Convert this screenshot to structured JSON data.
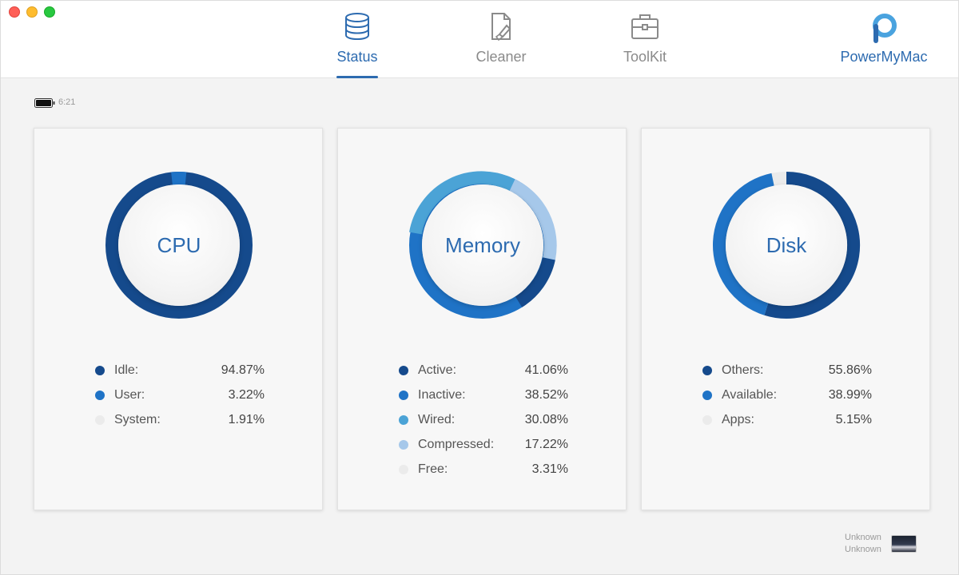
{
  "toolbar": {
    "tabs": [
      {
        "label": "Status",
        "active": true,
        "icon": "database-icon"
      },
      {
        "label": "Cleaner",
        "active": false,
        "icon": "cleaner-icon"
      },
      {
        "label": "ToolKit",
        "active": false,
        "icon": "toolkit-icon"
      }
    ],
    "brand": {
      "label": "PowerMyMac",
      "icon": "powermymac-logo-icon"
    }
  },
  "battery": {
    "time": "6:21",
    "icon": "battery-icon"
  },
  "colors": {
    "accent": "#2d6bb0",
    "dark_blue": "#154a8c",
    "mid_blue": "#1f73c6",
    "light_blue": "#4ba3d6",
    "pale_blue": "#a6c8ea",
    "empty": "#ebebeb"
  },
  "cards": {
    "cpu": {
      "title": "CPU",
      "items": [
        {
          "name": "Idle:",
          "value": "94.87%",
          "color": "#154a8c"
        },
        {
          "name": "User:",
          "value": "3.22%",
          "color": "#1f73c6"
        },
        {
          "name": "System:",
          "value": "1.91%",
          "color": "#ebebeb"
        }
      ]
    },
    "memory": {
      "title": "Memory",
      "items": [
        {
          "name": "Active:",
          "value": "41.06%",
          "color": "#154a8c"
        },
        {
          "name": "Inactive:",
          "value": "38.52%",
          "color": "#1f73c6"
        },
        {
          "name": "Wired:",
          "value": "30.08%",
          "color": "#4ba3d6"
        },
        {
          "name": "Compressed:",
          "value": "17.22%",
          "color": "#a6c8ea"
        },
        {
          "name": "Free:",
          "value": "3.31%",
          "color": "#ebebeb"
        }
      ]
    },
    "disk": {
      "title": "Disk",
      "items": [
        {
          "name": "Others:",
          "value": "55.86%",
          "color": "#154a8c"
        },
        {
          "name": "Available:",
          "value": "38.99%",
          "color": "#1f73c6"
        },
        {
          "name": "Apps:",
          "value": "5.15%",
          "color": "#ebebeb"
        }
      ]
    }
  },
  "device": {
    "line1": "Unknown",
    "line2": "Unknown"
  }
}
